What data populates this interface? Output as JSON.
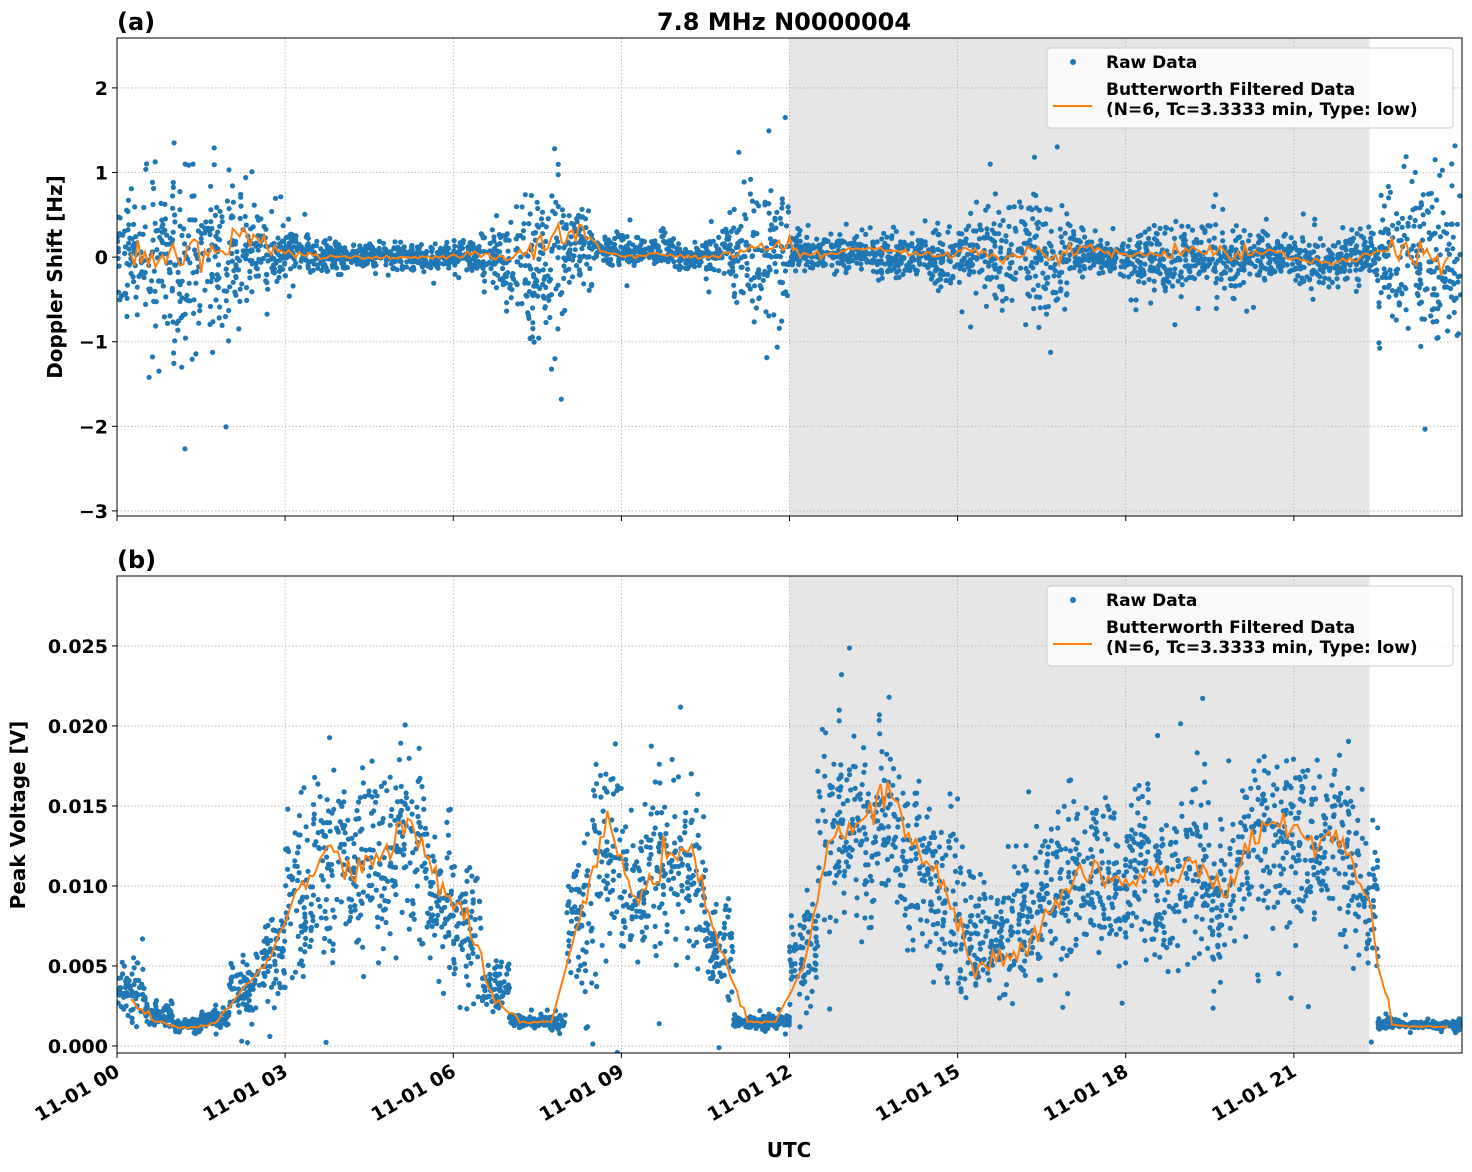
{
  "chart_data": [
    {
      "type": "scatter",
      "panel_label": "(a)",
      "title": "7.8 MHz N0000004",
      "xlabel": "",
      "ylabel": "Doppler Shift [Hz]",
      "xlim_hours": [
        0,
        24
      ],
      "ylim": [
        -3.06,
        2.59
      ],
      "x_ticks": [
        0,
        3,
        6,
        9,
        12,
        15,
        18,
        21
      ],
      "x_tick_labels": [],
      "y_ticks": [
        2,
        1,
        0,
        -1,
        -2,
        -3
      ],
      "y_tick_labels": [
        "2",
        "1",
        "0",
        "−1",
        "−2",
        "−3"
      ],
      "grid": true,
      "shaded_span_hours": [
        12,
        22.35
      ],
      "legend": {
        "placement": "upper-right",
        "entries": [
          "Raw Data",
          "Butterworth Filtered Data",
          "(N=6, Tc=3.3333 min, Type: low)"
        ]
      },
      "colors": {
        "raw": "#1f77b4",
        "filtered": "#ff7f0e",
        "shade": "#e6e6e6"
      },
      "series": [
        {
          "name": "Raw Data",
          "kind": "envelope",
          "t": [
            0.25,
            0.75,
            1.25,
            1.75,
            2.25,
            2.75,
            3.25,
            3.75,
            4.25,
            4.75,
            5.25,
            5.75,
            6.25,
            6.75,
            7.25,
            7.75,
            8.25,
            8.75,
            9.25,
            9.75,
            10.25,
            10.75,
            11.25,
            11.75,
            12.25,
            12.75,
            13.25,
            13.75,
            14.25,
            14.75,
            15.25,
            15.75,
            16.25,
            16.75,
            17.25,
            17.75,
            18.25,
            18.75,
            19.25,
            19.75,
            20.25,
            20.75,
            21.25,
            21.75,
            22.25,
            22.75,
            23.25,
            23.75
          ],
          "low": [
            -1.0,
            -1.4,
            -1.8,
            -1.3,
            -0.8,
            -0.5,
            -0.3,
            -0.25,
            -0.2,
            -0.2,
            -0.2,
            -0.2,
            -0.25,
            -0.6,
            -1.1,
            -1.2,
            -0.5,
            -0.15,
            -0.2,
            -0.2,
            -0.2,
            -0.3,
            -1.0,
            -1.1,
            -0.3,
            -0.2,
            -0.25,
            -0.3,
            -0.3,
            -0.4,
            -0.5,
            -0.8,
            -0.8,
            -1.0,
            -0.3,
            -0.3,
            -0.4,
            -0.6,
            -0.5,
            -0.7,
            -0.4,
            -0.3,
            -0.4,
            -0.4,
            -0.4,
            -1.2,
            -1.3,
            -1.4
          ],
          "high": [
            1.0,
            1.4,
            1.6,
            1.3,
            1.0,
            0.6,
            0.4,
            0.3,
            0.2,
            0.2,
            0.2,
            0.2,
            0.3,
            0.6,
            1.0,
            1.2,
            0.8,
            0.3,
            0.3,
            0.3,
            0.2,
            0.4,
            1.0,
            1.1,
            0.4,
            0.3,
            0.35,
            0.4,
            0.3,
            0.4,
            0.6,
            0.8,
            0.9,
            0.8,
            0.4,
            0.3,
            0.4,
            0.5,
            0.5,
            0.6,
            0.4,
            0.3,
            0.3,
            0.3,
            0.4,
            1.2,
            1.2,
            1.2
          ]
        },
        {
          "name": "Butterworth Filtered Data",
          "t": [
            0.25,
            0.75,
            1.25,
            1.75,
            2.25,
            2.75,
            3.25,
            3.75,
            4.25,
            4.75,
            5.25,
            5.75,
            6.25,
            6.75,
            7.25,
            7.75,
            8.25,
            8.75,
            9.25,
            9.75,
            10.25,
            10.75,
            11.25,
            11.75,
            12.25,
            12.75,
            13.25,
            13.75,
            14.25,
            14.75,
            15.25,
            15.75,
            16.25,
            16.75,
            17.25,
            17.75,
            18.25,
            18.75,
            19.25,
            19.75,
            20.25,
            20.75,
            21.25,
            21.75,
            22.25,
            22.75,
            23.25,
            23.75
          ],
          "y": [
            0,
            0,
            0,
            0.1,
            0.25,
            0.1,
            0.05,
            0,
            0,
            0,
            0,
            0,
            0.02,
            0,
            0.05,
            0.15,
            0.35,
            0.05,
            0,
            0.05,
            0,
            0,
            0.1,
            0.15,
            0.05,
            0.05,
            0.1,
            0.1,
            0.05,
            0,
            0.1,
            0,
            0.05,
            0,
            0.15,
            0.05,
            0,
            0.05,
            0.1,
            0.05,
            0.05,
            0.05,
            -0.05,
            -0.05,
            0,
            0.1,
            0,
            0
          ]
        }
      ]
    },
    {
      "type": "scatter",
      "panel_label": "(b)",
      "title": "",
      "xlabel": "UTC",
      "ylabel": "Peak Voltage [V]",
      "xlim_hours": [
        0,
        24
      ],
      "ylim": [
        -0.00044,
        0.02937
      ],
      "x_ticks": [
        0,
        3,
        6,
        9,
        12,
        15,
        18,
        21
      ],
      "x_tick_labels": [
        "11-01 00",
        "11-01 03",
        "11-01 06",
        "11-01 09",
        "11-01 12",
        "11-01 15",
        "11-01 18",
        "11-01 21"
      ],
      "y_ticks": [
        0,
        0.005,
        0.01,
        0.015,
        0.02,
        0.025
      ],
      "y_tick_labels": [
        "0.000",
        "0.005",
        "0.010",
        "0.015",
        "0.020",
        "0.025"
      ],
      "grid": true,
      "shaded_span_hours": [
        12,
        22.35
      ],
      "legend": {
        "placement": "upper-right",
        "entries": [
          "Raw Data",
          "Butterworth Filtered Data",
          "(N=6, Tc=3.3333 min, Type: low)"
        ]
      },
      "colors": {
        "raw": "#1f77b4",
        "filtered": "#ff7f0e",
        "shade": "#e6e6e6"
      },
      "series": [
        {
          "name": "Raw Data",
          "kind": "envelope",
          "t": [
            0.25,
            0.75,
            1.25,
            1.75,
            2.25,
            2.75,
            3.25,
            3.75,
            4.25,
            4.75,
            5.25,
            5.75,
            6.25,
            6.75,
            7.25,
            7.75,
            8.25,
            8.75,
            9.25,
            9.75,
            10.25,
            10.75,
            11.25,
            11.75,
            12.25,
            12.75,
            13.25,
            13.75,
            14.25,
            14.75,
            15.25,
            15.75,
            16.25,
            16.75,
            17.25,
            17.75,
            18.25,
            18.75,
            19.25,
            19.75,
            20.25,
            20.75,
            21.25,
            21.75,
            22.25,
            22.75,
            23.25,
            23.75
          ],
          "low": [
            0.001,
            0.001,
            0.0008,
            0.0009,
            0.0015,
            0.0025,
            0.003,
            0.004,
            0.004,
            0.004,
            0.005,
            0.003,
            0.002,
            0.0015,
            0.001,
            0.001,
            0.002,
            0.004,
            0.003,
            0.004,
            0.004,
            0.002,
            0.001,
            0.001,
            0.002,
            0.005,
            0.005,
            0.006,
            0.004,
            0.003,
            0.0015,
            0.0015,
            0.0015,
            0.003,
            0.004,
            0.003,
            0.004,
            0.003,
            0.004,
            0.003,
            0.006,
            0.006,
            0.006,
            0.006,
            0.003,
            0.001,
            0.001,
            0.001
          ],
          "high": [
            0.006,
            0.003,
            0.0018,
            0.0025,
            0.006,
            0.009,
            0.016,
            0.02,
            0.019,
            0.02,
            0.022,
            0.017,
            0.013,
            0.006,
            0.002,
            0.002,
            0.014,
            0.02,
            0.016,
            0.018,
            0.018,
            0.01,
            0.002,
            0.002,
            0.01,
            0.021,
            0.021,
            0.023,
            0.02,
            0.017,
            0.012,
            0.012,
            0.015,
            0.016,
            0.018,
            0.017,
            0.018,
            0.017,
            0.018,
            0.015,
            0.019,
            0.02,
            0.019,
            0.02,
            0.017,
            0.0018,
            0.0016,
            0.0016
          ]
        },
        {
          "name": "Butterworth Filtered Data",
          "t": [
            0.25,
            0.75,
            1.25,
            1.75,
            2.25,
            2.75,
            3.25,
            3.75,
            4.25,
            4.75,
            5.25,
            5.75,
            6.25,
            6.75,
            7.25,
            7.75,
            8.25,
            8.75,
            9.25,
            9.75,
            10.25,
            10.75,
            11.25,
            11.75,
            12.25,
            12.75,
            13.25,
            13.75,
            14.25,
            14.75,
            15.25,
            15.75,
            16.25,
            16.75,
            17.25,
            17.75,
            18.25,
            18.75,
            19.25,
            19.75,
            20.25,
            20.75,
            21.25,
            21.75,
            22.25,
            22.75,
            23.25,
            23.75
          ],
          "y": [
            0.003,
            0.0015,
            0.0011,
            0.0014,
            0.0035,
            0.0055,
            0.01,
            0.012,
            0.011,
            0.012,
            0.014,
            0.01,
            0.008,
            0.003,
            0.0015,
            0.0015,
            0.008,
            0.014,
            0.009,
            0.012,
            0.012,
            0.006,
            0.0015,
            0.0015,
            0.005,
            0.013,
            0.014,
            0.016,
            0.012,
            0.01,
            0.005,
            0.005,
            0.006,
            0.009,
            0.011,
            0.01,
            0.011,
            0.01,
            0.012,
            0.009,
            0.013,
            0.014,
            0.013,
            0.013,
            0.01,
            0.0013,
            0.0012,
            0.0012
          ]
        }
      ]
    }
  ]
}
